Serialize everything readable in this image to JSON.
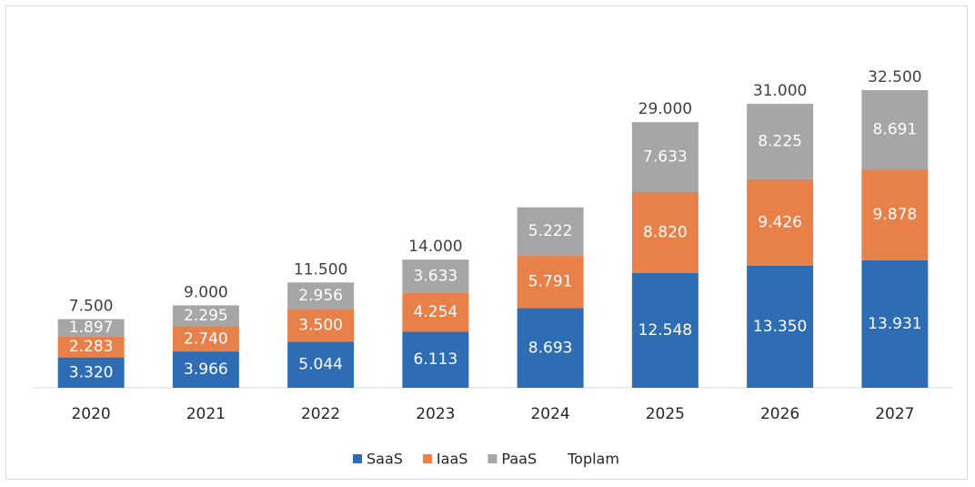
{
  "chart_data": {
    "type": "bar",
    "stacked": true,
    "categories": [
      "2020",
      "2021",
      "2022",
      "2023",
      "2024",
      "2025",
      "2026",
      "2027"
    ],
    "series": [
      {
        "name": "SaaS",
        "color": "#2e6db4",
        "values": [
          3320,
          3966,
          5044,
          6113,
          8693,
          12548,
          13350,
          13931
        ],
        "labels": [
          "3.320",
          "3.966",
          "5.044",
          "6.113",
          "8.693",
          "12.548",
          "13.350",
          "13.931"
        ]
      },
      {
        "name": "IaaS",
        "color": "#e8804a",
        "values": [
          2283,
          2740,
          3500,
          4254,
          5791,
          8820,
          9426,
          9878
        ],
        "labels": [
          "2.283",
          "2.740",
          "3.500",
          "4.254",
          "5.791",
          "8.820",
          "9.426",
          "9.878"
        ]
      },
      {
        "name": "PaaS",
        "color": "#a6a6a6",
        "values": [
          1897,
          2295,
          2956,
          3633,
          5222,
          7633,
          8225,
          8691
        ],
        "labels": [
          "1.897",
          "2.295",
          "2.956",
          "3.633",
          "5.222",
          "7.633",
          "8.225",
          "8.691"
        ]
      }
    ],
    "totals": {
      "name": "Toplam",
      "values": [
        7500,
        9000,
        11500,
        14000,
        19706,
        29000,
        31000,
        32500
      ],
      "labels": [
        "7.500",
        "9.000",
        "11.500",
        "14.000",
        "",
        "29.000",
        "31.000",
        "32.500"
      ]
    },
    "ylim": [
      0,
      35000
    ],
    "grid": false,
    "legend": "bottom",
    "title": "",
    "xlabel": "",
    "ylabel": ""
  }
}
